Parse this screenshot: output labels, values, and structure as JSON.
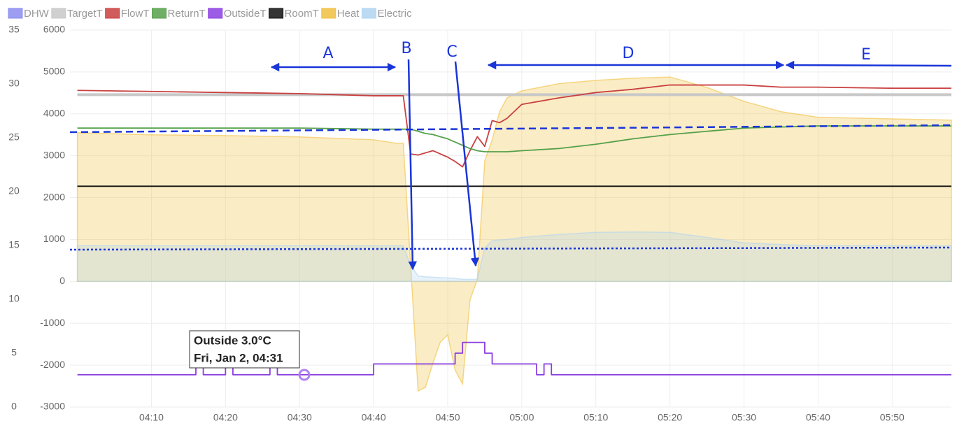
{
  "chart_data": {
    "type": "line",
    "xlim": [
      "03:59",
      "05:58"
    ],
    "xticks": [
      "04:10",
      "04:20",
      "04:30",
      "04:40",
      "04:50",
      "05:00",
      "05:10",
      "05:20",
      "05:30",
      "05:40",
      "05:50"
    ],
    "ylim": [
      0,
      35
    ],
    "yticks": [
      0,
      5,
      10,
      15,
      20,
      25,
      30,
      35
    ],
    "y2lim": [
      -3000,
      6000
    ],
    "y2ticks": [
      -3000,
      -2000,
      -1000,
      0,
      1000,
      2000,
      3000,
      4000,
      5000,
      6000
    ],
    "grid": true,
    "legend": "top-left",
    "x": [
      "04:00",
      "04:10",
      "04:20",
      "04:30",
      "04:40",
      "04:43",
      "04:44",
      "04:45",
      "04:46",
      "04:47",
      "04:48",
      "04:49",
      "04:50",
      "04:51",
      "04:52",
      "04:53",
      "04:54",
      "04:55",
      "04:56",
      "04:57",
      "04:58",
      "05:00",
      "05:05",
      "05:10",
      "05:15",
      "05:20",
      "05:25",
      "05:30",
      "05:35",
      "05:40",
      "05:50",
      "05:58"
    ],
    "series": [
      {
        "name": "DHW",
        "color": "#8c8cf0",
        "values": [
          null,
          null,
          null,
          null,
          null,
          null,
          null,
          null,
          null,
          null,
          null,
          null,
          null,
          null,
          null,
          null,
          null,
          null,
          null,
          null,
          null,
          null,
          null,
          null,
          null,
          null,
          null,
          null,
          null,
          null,
          null,
          null
        ]
      },
      {
        "name": "TargetT",
        "color": "#c8c8c8",
        "values": [
          29,
          29,
          29,
          29,
          29,
          29,
          29,
          29,
          29,
          29,
          29,
          29,
          29,
          29,
          29,
          29,
          29,
          29,
          29,
          29,
          29,
          29,
          29,
          29,
          29,
          29,
          29,
          29,
          29,
          29,
          29,
          29
        ]
      },
      {
        "name": "FlowT",
        "color": "#c94040",
        "values": [
          29.4,
          29.3,
          29.2,
          29.1,
          28.9,
          28.9,
          28.9,
          23.5,
          23.4,
          23.6,
          23.8,
          23.5,
          23.2,
          22.8,
          22.3,
          23.8,
          25.1,
          24.2,
          26.6,
          26.4,
          26.8,
          28.1,
          28.7,
          29.2,
          29.5,
          29.9,
          29.9,
          29.9,
          29.7,
          29.7,
          29.6,
          29.6
        ]
      },
      {
        "name": "ReturnT",
        "color": "#55a04a",
        "values": [
          25.9,
          25.9,
          25.9,
          25.9,
          25.8,
          25.8,
          25.8,
          25.8,
          25.6,
          25.4,
          25.3,
          25.1,
          24.9,
          24.6,
          24.3,
          24.0,
          23.8,
          23.7,
          23.7,
          23.7,
          23.7,
          23.8,
          24.0,
          24.4,
          24.9,
          25.3,
          25.6,
          25.9,
          26.0,
          26.1,
          26.1,
          26.1
        ]
      },
      {
        "name": "OutsideT",
        "color": "#8b3fe0",
        "x": [
          "04:00",
          "04:16",
          "04:16",
          "04:17",
          "04:17",
          "04:20",
          "04:20",
          "04:21",
          "04:21",
          "04:26",
          "04:26",
          "04:27",
          "04:27",
          "04:40",
          "04:40",
          "04:51",
          "04:51",
          "04:52",
          "04:52",
          "04:55",
          "04:55",
          "04:56",
          "04:56",
          "05:02",
          "05:02",
          "05:03",
          "05:03",
          "05:04",
          "05:04",
          "05:58"
        ],
        "values": [
          3,
          3,
          4,
          4,
          3,
          3,
          4,
          4,
          3,
          3,
          4,
          4,
          3,
          3,
          4,
          4,
          5,
          5,
          6,
          6,
          5,
          5,
          4,
          4,
          3,
          3,
          4,
          4,
          3,
          3
        ]
      },
      {
        "name": "RoomT",
        "color": "#111111",
        "values": [
          20.5,
          20.5,
          20.5,
          20.5,
          20.5,
          20.5,
          20.5,
          20.5,
          20.5,
          20.5,
          20.5,
          20.5,
          20.5,
          20.5,
          20.5,
          20.5,
          20.5,
          20.5,
          20.5,
          20.5,
          20.5,
          20.5,
          20.5,
          20.5,
          20.5,
          20.5,
          20.5,
          20.5,
          20.5,
          20.5,
          20.5,
          20.5
        ]
      },
      {
        "name": "Heat",
        "color": "#f0c040",
        "axis": "y2",
        "area": true,
        "values": [
          3550,
          3500,
          3480,
          3450,
          3380,
          3300,
          3300,
          380,
          -2620,
          -2530,
          -1950,
          -1450,
          -1280,
          -2120,
          -2450,
          -450,
          50,
          2880,
          3380,
          4050,
          4380,
          4550,
          4720,
          4800,
          4850,
          4880,
          4630,
          4300,
          4050,
          3920,
          3880,
          3850
        ]
      },
      {
        "name": "Electric",
        "color": "#b0d4f0",
        "axis": "y2",
        "area": true,
        "values": [
          850,
          850,
          850,
          850,
          850,
          850,
          850,
          380,
          130,
          110,
          100,
          90,
          80,
          70,
          50,
          50,
          50,
          800,
          970,
          990,
          1000,
          1050,
          1120,
          1170,
          1180,
          1170,
          1050,
          920,
          880,
          850,
          850,
          850
        ]
      }
    ],
    "annotations": [
      "A",
      "B",
      "C",
      "D",
      "E"
    ],
    "tooltip": [
      "Outside 3.0°C",
      "Fri, Jan 2, 04:31"
    ]
  }
}
